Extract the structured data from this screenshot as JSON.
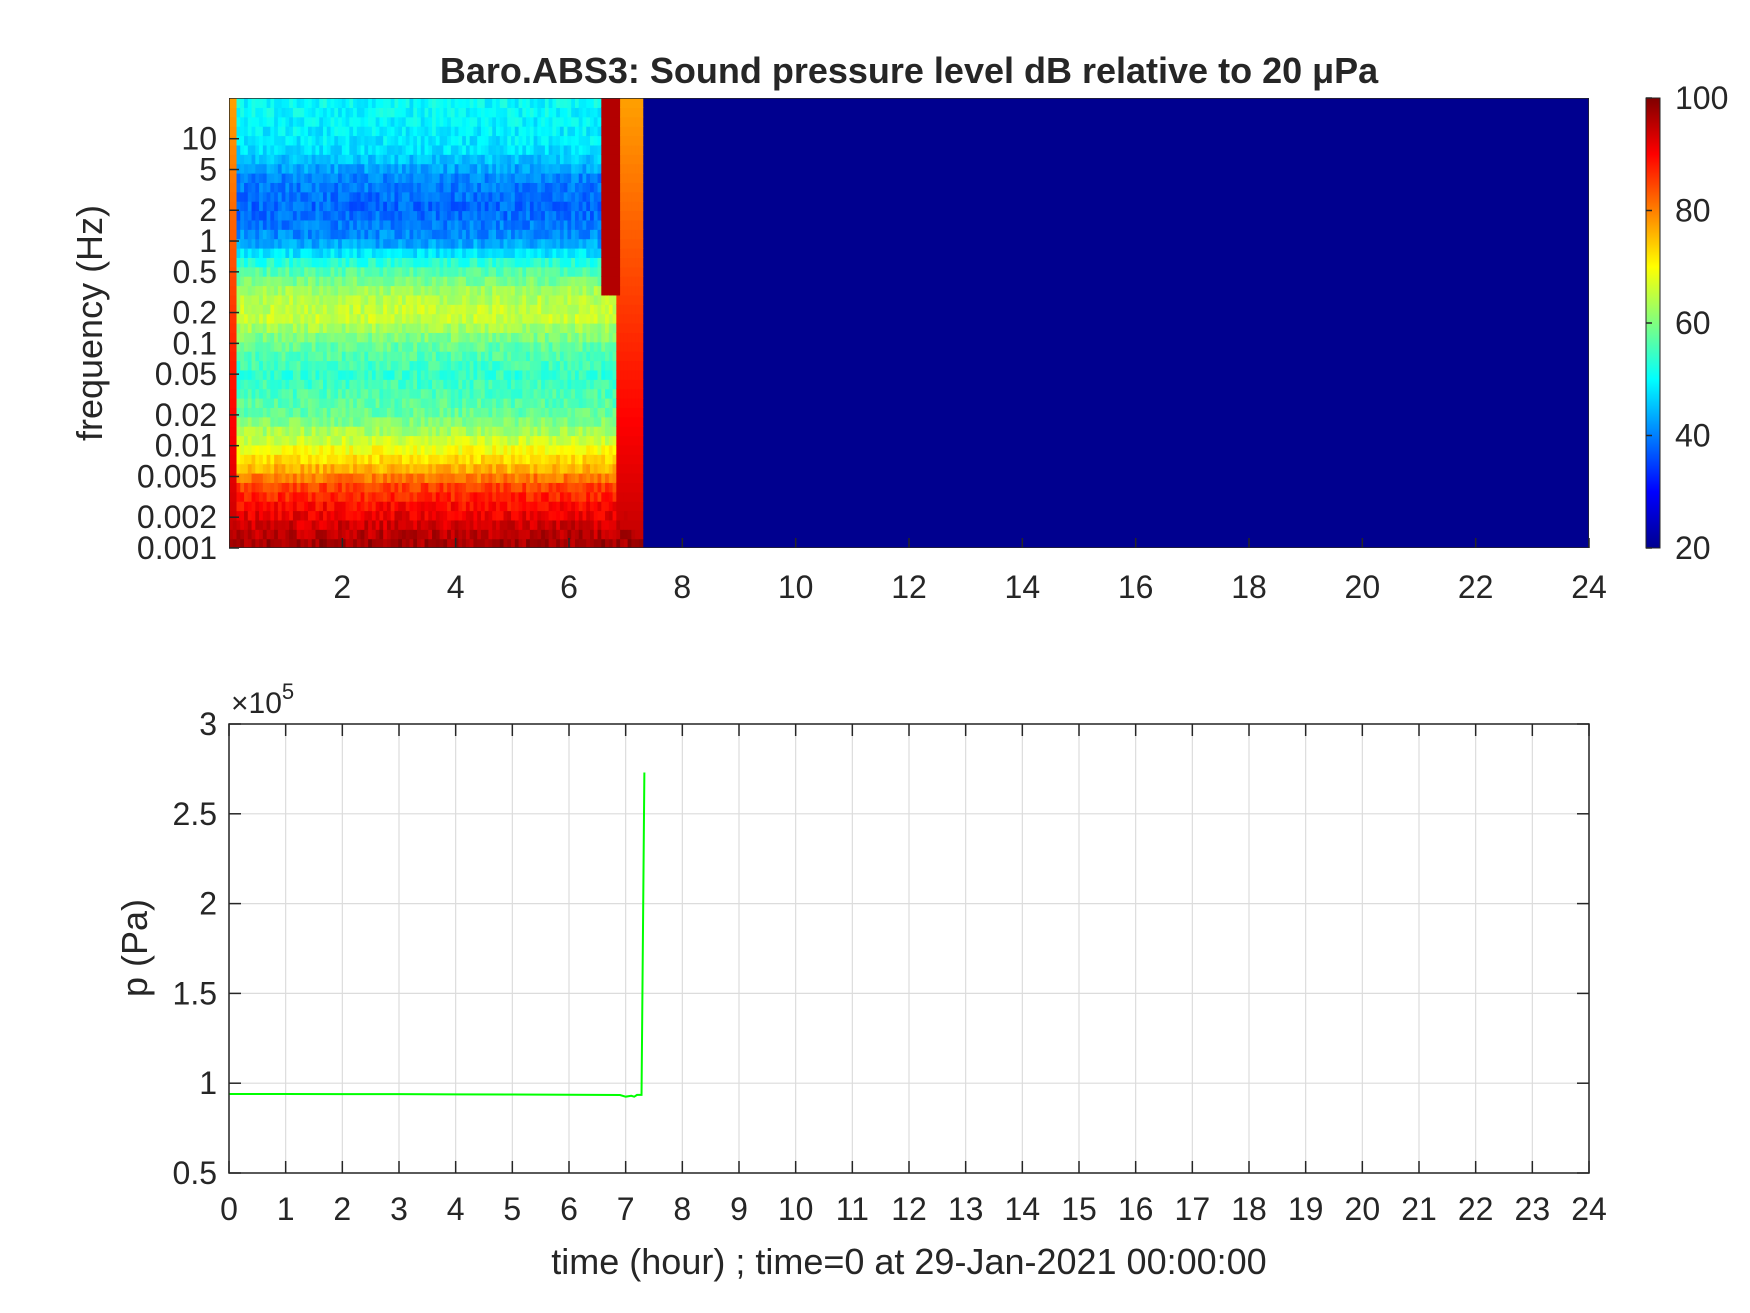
{
  "chart_data": [
    {
      "type": "heatmap",
      "title": "Baro.ABS3: Sound pressure level dB relative to 20 μPa",
      "xlabel": "",
      "ylabel": "frequency (Hz)",
      "x_range": [
        0,
        24
      ],
      "x_ticks": [
        "2",
        "4",
        "6",
        "8",
        "10",
        "12",
        "14",
        "16",
        "18",
        "20",
        "22",
        "24"
      ],
      "y_scale": "log",
      "y_range": [
        0.001,
        25
      ],
      "y_ticks": [
        "0.001",
        "0.002",
        "0.005",
        "0.01",
        "0.02",
        "0.05",
        "0.1",
        "0.2",
        "0.5",
        "1",
        "2",
        "5",
        "10"
      ],
      "colormap": "jet",
      "colorbar": {
        "range": [
          20,
          100
        ],
        "ticks": [
          "20",
          "40",
          "60",
          "80",
          "100"
        ]
      },
      "active_interval_hours": [
        0,
        7.3
      ],
      "level_profile_db": [
        {
          "frequency": 0.001,
          "db": 98
        },
        {
          "frequency": 0.002,
          "db": 92
        },
        {
          "frequency": 0.004,
          "db": 85
        },
        {
          "frequency": 0.006,
          "db": 76
        },
        {
          "frequency": 0.01,
          "db": 68
        },
        {
          "frequency": 0.02,
          "db": 58
        },
        {
          "frequency": 0.05,
          "db": 54
        },
        {
          "frequency": 0.1,
          "db": 58
        },
        {
          "frequency": 0.18,
          "db": 66
        },
        {
          "frequency": 0.3,
          "db": 64
        },
        {
          "frequency": 0.6,
          "db": 54
        },
        {
          "frequency": 1.0,
          "db": 42
        },
        {
          "frequency": 2.0,
          "db": 38
        },
        {
          "frequency": 4.0,
          "db": 40
        },
        {
          "frequency": 8.0,
          "db": 48
        },
        {
          "frequency": 20.0,
          "db": 50
        }
      ],
      "inactive_level_db": 20
    },
    {
      "type": "line",
      "title": "",
      "xlabel": "time (hour) ; time=0 at 29-Jan-2021 00:00:00",
      "ylabel": "p (Pa)",
      "x_range": [
        0,
        24
      ],
      "x_ticks": [
        "0",
        "1",
        "2",
        "3",
        "4",
        "5",
        "6",
        "7",
        "8",
        "9",
        "10",
        "11",
        "12",
        "13",
        "14",
        "15",
        "16",
        "17",
        "18",
        "19",
        "20",
        "21",
        "22",
        "23",
        "24"
      ],
      "ylim": [
        0.5,
        3
      ],
      "y_ticks": [
        "0.5",
        "1",
        "1.5",
        "2",
        "2.5",
        "3"
      ],
      "y_exponent_label": "×10",
      "y_exponent": "5",
      "grid": true,
      "series": [
        {
          "color": "#00ff00",
          "x": [
            0,
            1,
            2,
            3,
            4,
            5,
            6,
            6.9,
            7.0,
            7.1,
            7.15,
            7.2,
            7.28,
            7.33
          ],
          "y": [
            0.94,
            0.94,
            0.939,
            0.939,
            0.938,
            0.937,
            0.936,
            0.934,
            0.925,
            0.93,
            0.925,
            0.935,
            0.935,
            2.73
          ]
        }
      ]
    }
  ]
}
